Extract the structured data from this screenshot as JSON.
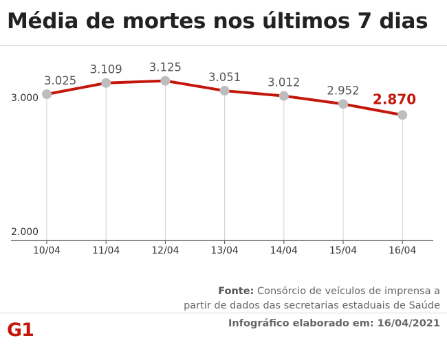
{
  "header": {
    "title": "Média de mortes nos últimos 7 dias"
  },
  "chart_data": {
    "type": "line",
    "title": "Média de mortes nos últimos 7 dias",
    "categories": [
      "10/04",
      "11/04",
      "12/04",
      "13/04",
      "14/04",
      "15/04",
      "16/04"
    ],
    "values": [
      3025,
      3109,
      3125,
      3051,
      3012,
      2952,
      2870
    ],
    "value_labels": [
      "3.025",
      "3.109",
      "3.125",
      "3.051",
      "3.012",
      "2.952",
      "2.870"
    ],
    "y_ticks": [
      2000,
      3000
    ],
    "y_tick_labels": [
      "2.000",
      "3.000"
    ],
    "ylim": [
      2000,
      3000
    ],
    "xlabel": "",
    "ylabel": "",
    "highlight_index": 6,
    "colors": {
      "line": "#c4170c",
      "marker": "#bdbdbd",
      "highlight": "#c4170c",
      "label": "#555555",
      "grid": "#cfcfcf"
    }
  },
  "footer": {
    "source_label": "Fonte:",
    "source_line1": "Consórcio de veículos de imprensa a",
    "source_line2": "partir de dados das secretarias estaduais de Saúde",
    "date": "Infográfico elaborado em: 16/04/2021",
    "logo_text": "G1"
  }
}
